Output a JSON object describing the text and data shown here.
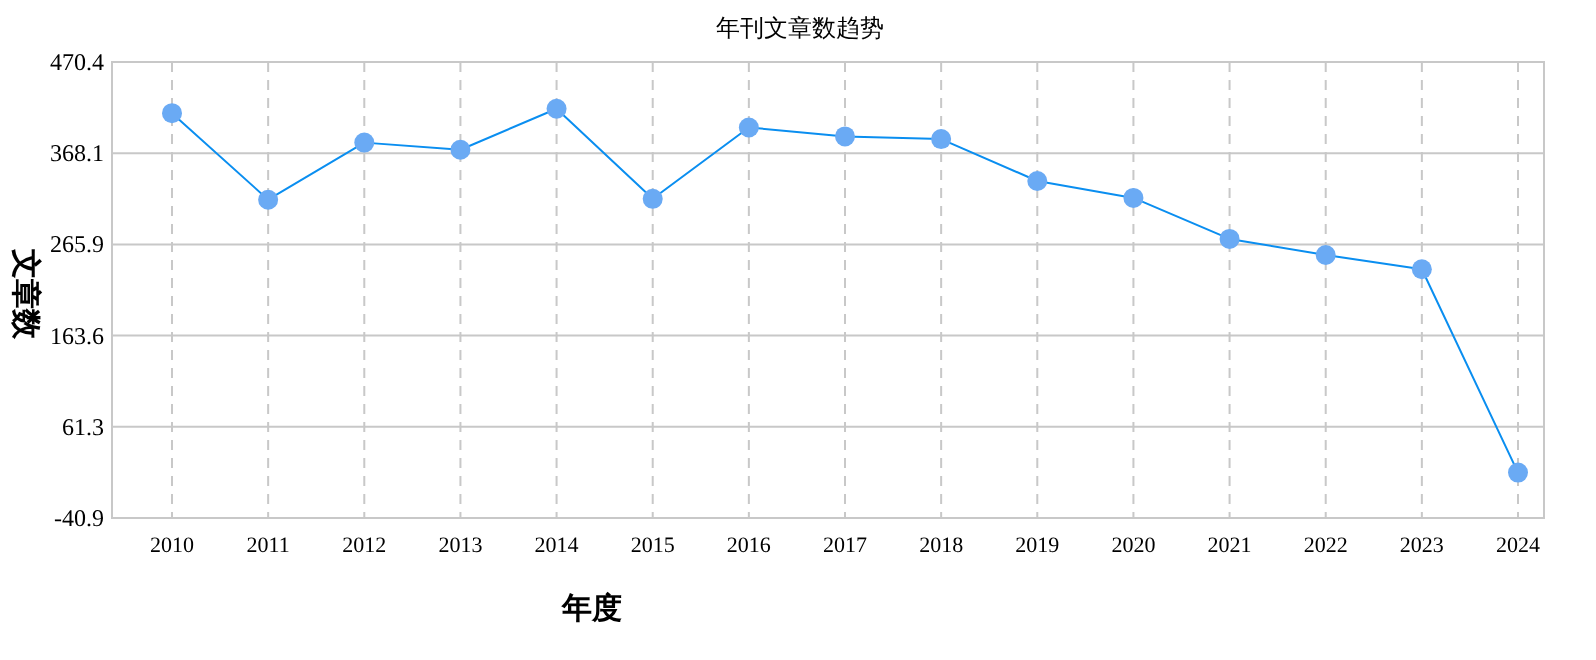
{
  "chart_data": {
    "type": "line",
    "title": "年刊文章数趋势",
    "xlabel": "年度",
    "ylabel": "文章数",
    "categories": [
      "2010",
      "2011",
      "2012",
      "2013",
      "2014",
      "2015",
      "2016",
      "2017",
      "2018",
      "2019",
      "2020",
      "2021",
      "2022",
      "2023",
      "2024"
    ],
    "series": [
      {
        "color": "#0a8ef0",
        "values": [
          413,
          316,
          380,
          372,
          418,
          317,
          397,
          387,
          384,
          337,
          318,
          272,
          254,
          238,
          10
        ]
      }
    ],
    "ylim": [
      -40.9,
      470.4
    ],
    "yticks": [
      -40.9,
      61.3,
      163.6,
      265.9,
      368.1,
      470.4
    ],
    "grid": true,
    "marker": "circle",
    "line_style": "solid"
  }
}
